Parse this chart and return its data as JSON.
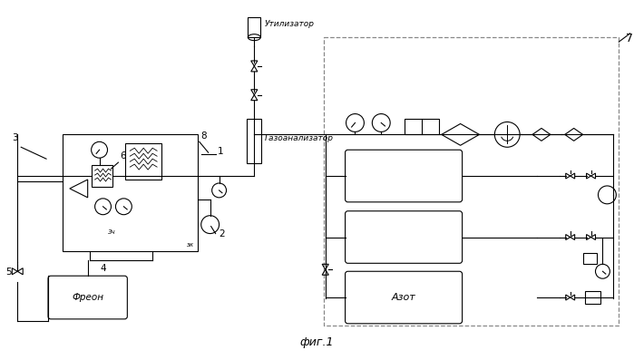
{
  "title": "фиг.1",
  "label_utiliz": "Утилизатор",
  "label_gazoanal": "Газоанализатор",
  "label_freon": "Фреон",
  "label_azot": "Азот",
  "label_7": "7",
  "label_6": "6",
  "label_8": "8",
  "label_1": "1",
  "label_2": "2",
  "label_3": "3",
  "label_4": "4",
  "label_5": "5",
  "label_ek": "эк",
  "label_3ch": "3ч",
  "bg_color": "#ffffff",
  "line_color": "#000000",
  "dashed_color": "#888888"
}
